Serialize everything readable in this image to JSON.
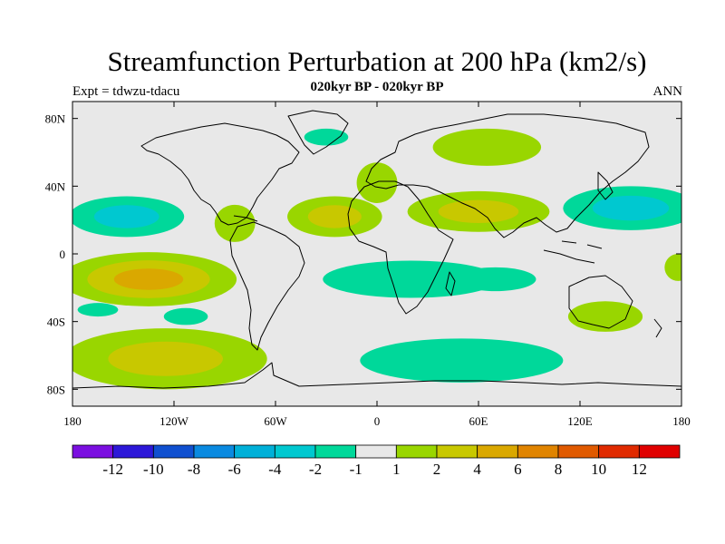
{
  "chart_data": {
    "type": "heatmap",
    "title": "Streamfunction Perturbation at 200 hPa (km2/s)",
    "subtitle": "020kyr BP - 020kyr BP",
    "left_label": "Expt = tdwzu-tdacu",
    "right_label": "ANN",
    "x_ticks": [
      {
        "value": -180,
        "label": "180"
      },
      {
        "value": -120,
        "label": "120W"
      },
      {
        "value": -60,
        "label": "60W"
      },
      {
        "value": 0,
        "label": "0"
      },
      {
        "value": 60,
        "label": "60E"
      },
      {
        "value": 120,
        "label": "120E"
      },
      {
        "value": 180,
        "label": "180"
      }
    ],
    "y_ticks": [
      {
        "value": 80,
        "label": "80N"
      },
      {
        "value": 40,
        "label": "40N"
      },
      {
        "value": 0,
        "label": "0"
      },
      {
        "value": -40,
        "label": "40S"
      },
      {
        "value": -80,
        "label": "80S"
      }
    ],
    "xlim": [
      -180,
      180
    ],
    "ylim": [
      -90,
      90
    ],
    "background_color": "#e8e8e8",
    "regions": [
      {
        "name": "north-pacific-negative",
        "lon": -148,
        "lat": 22,
        "rx": 34,
        "ry": 12,
        "levels": [
          "#00d89a",
          "#00c8d0"
        ]
      },
      {
        "name": "south-pacific-positive",
        "lon": -135,
        "lat": -15,
        "rx": 52,
        "ry": 16,
        "levels": [
          "#99d600",
          "#c8c800",
          "#daa800"
        ]
      },
      {
        "name": "southern-ocean-pacific-positive",
        "lon": -125,
        "lat": -62,
        "rx": 60,
        "ry": 18,
        "levels": [
          "#99d600",
          "#c8c800"
        ]
      },
      {
        "name": "south-pacific-negative-small",
        "lon": -165,
        "lat": -33,
        "rx": 12,
        "ry": 4,
        "levels": [
          "#00d89a"
        ]
      },
      {
        "name": "subtropical-south-pacific-negative",
        "lon": -113,
        "lat": -37,
        "rx": 13,
        "ry": 5,
        "levels": [
          "#00d89a"
        ]
      },
      {
        "name": "caribbean-positive",
        "lon": -84,
        "lat": 18,
        "rx": 12,
        "ry": 11,
        "levels": [
          "#99d600"
        ]
      },
      {
        "name": "north-atlantic-positive",
        "lon": -25,
        "lat": 22,
        "rx": 28,
        "ry": 12,
        "levels": [
          "#99d600",
          "#c8c800"
        ]
      },
      {
        "name": "europe-positive",
        "lon": 0,
        "lat": 42,
        "rx": 12,
        "ry": 12,
        "levels": [
          "#99d600"
        ]
      },
      {
        "name": "greenland-negative",
        "lon": -30,
        "lat": 69,
        "rx": 13,
        "ry": 5,
        "levels": [
          "#00d89a"
        ]
      },
      {
        "name": "siberia-positive",
        "lon": 65,
        "lat": 63,
        "rx": 32,
        "ry": 11,
        "levels": [
          "#99d600"
        ]
      },
      {
        "name": "asia-positive",
        "lon": 60,
        "lat": 25,
        "rx": 42,
        "ry": 12,
        "levels": [
          "#99d600",
          "#c8c800"
        ]
      },
      {
        "name": "south-atlantic-negative",
        "lon": 20,
        "lat": -15,
        "rx": 52,
        "ry": 11,
        "levels": [
          "#00d89a"
        ]
      },
      {
        "name": "indian-ocean-negative",
        "lon": 70,
        "lat": -15,
        "rx": 24,
        "ry": 7,
        "levels": [
          "#00d89a"
        ]
      },
      {
        "name": "southern-ocean-negative",
        "lon": 50,
        "lat": -63,
        "rx": 60,
        "ry": 13,
        "levels": [
          "#00d89a"
        ]
      },
      {
        "name": "west-pacific-negative",
        "lon": 150,
        "lat": 27,
        "rx": 40,
        "ry": 13,
        "levels": [
          "#00d89a",
          "#00c8d0"
        ]
      },
      {
        "name": "australia-positive",
        "lon": 135,
        "lat": -37,
        "rx": 22,
        "ry": 9,
        "levels": [
          "#99d600"
        ]
      },
      {
        "name": "east-edge-positive",
        "lon": 178,
        "lat": -8,
        "rx": 8,
        "ry": 8,
        "levels": [
          "#99d600"
        ]
      }
    ],
    "colorbar": {
      "colors": [
        "#7b0fe0",
        "#2d18d8",
        "#1050d0",
        "#0a8ae0",
        "#00b0d8",
        "#00c8d0",
        "#00d89a",
        "#e8e8e8",
        "#99d600",
        "#c8c800",
        "#daa800",
        "#e08400",
        "#e05a00",
        "#e02a00",
        "#e00000"
      ],
      "labels": [
        "-12",
        "-10",
        "-8",
        "-6",
        "-4",
        "-2",
        "-1",
        "1",
        "2",
        "4",
        "6",
        "8",
        "10",
        "12"
      ]
    }
  }
}
